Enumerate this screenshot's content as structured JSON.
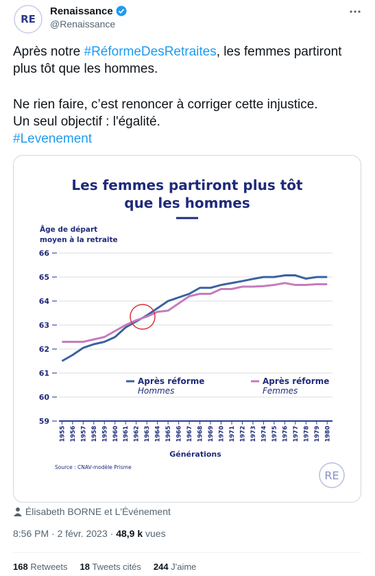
{
  "tweet": {
    "author": "Renaissance",
    "handle": "@Renaissance",
    "avatar": "RE",
    "text": {
      "p1": [
        "Après notre ",
        "#RéformeDesRetraites",
        ", les femmes partiront plus tôt que les hommes."
      ],
      "p2": [
        "Ne rien faire, c’est renoncer à corriger cette injustice.",
        "Un seul objectif : l'égalité.",
        "#Levenement"
      ]
    },
    "tagged": "Élisabeth BORNE et L'Événement",
    "time": "8:56 PM · 2 févr. 2023 · ",
    "views": "48,9 k",
    "views_label": "vues",
    "stats": [
      {
        "count": 168,
        "label": "Retweets"
      },
      {
        "count": 18,
        "label": "Tweets cités"
      },
      {
        "count": 244,
        "label": "J'aime"
      }
    ]
  },
  "chart_data": {
    "type": "line",
    "title": [
      "Les femmes partiront plus tôt",
      "que les hommes"
    ],
    "y_label": [
      "Âge de départ",
      "moyen à la retraite"
    ],
    "x_label": "Générations",
    "source": "Source : CNAV-modèle Prisme",
    "logo": "RE",
    "x": [
      1955,
      1956,
      1957,
      1958,
      1959,
      1960,
      1961,
      1962,
      1963,
      1964,
      1965,
      1966,
      1967,
      1968,
      1969,
      1970,
      1971,
      1972,
      1973,
      1974,
      1975,
      1976,
      1977,
      1978,
      1979,
      1980
    ],
    "xlim": [
      1954.2,
      1980.5
    ],
    "xticks": [
      1955,
      1956,
      1957,
      1958,
      1959,
      1960,
      1961,
      1962,
      1963,
      1964,
      1965,
      1966,
      1967,
      1968,
      1969,
      1970,
      1971,
      1972,
      1973,
      1974,
      1975,
      1976,
      1977,
      1978,
      1979,
      1980
    ],
    "ylim": [
      59,
      66
    ],
    "yticks": [
      59,
      60,
      61,
      62,
      63,
      64,
      65,
      66
    ],
    "grid": true,
    "series": [
      {
        "name": "Après réforme",
        "group": "Hommes",
        "color": "#3a62a0",
        "values": [
          61.5,
          61.75,
          62.05,
          62.2,
          62.3,
          62.5,
          62.9,
          63.15,
          63.4,
          63.7,
          64.0,
          64.15,
          64.3,
          64.55,
          64.55,
          64.67,
          64.75,
          64.83,
          64.92,
          65.0,
          65.0,
          65.07,
          65.07,
          64.93,
          65.0,
          65.0
        ]
      },
      {
        "name": "Après réforme",
        "group": "Femmes",
        "color": "#c67bbd",
        "values": [
          62.3,
          62.3,
          62.3,
          62.4,
          62.5,
          62.75,
          63.0,
          63.2,
          63.35,
          63.55,
          63.6,
          63.9,
          64.2,
          64.3,
          64.3,
          64.5,
          64.5,
          64.6,
          64.6,
          64.62,
          64.67,
          64.75,
          64.67,
          64.67,
          64.7,
          64.7
        ]
      }
    ]
  }
}
